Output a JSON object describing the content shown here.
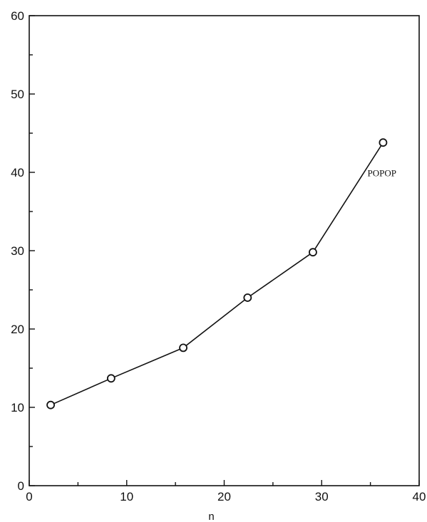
{
  "chart_data": {
    "type": "line",
    "title": "",
    "xlabel": "n",
    "ylabel": "",
    "xlim": [
      0,
      40
    ],
    "ylim": [
      0,
      60
    ],
    "x_ticks": [
      0,
      10,
      20,
      30,
      40
    ],
    "y_ticks": [
      0,
      10,
      20,
      30,
      40,
      50,
      60
    ],
    "x_tick_labels": [
      "0",
      "10",
      "20",
      "30",
      "40"
    ],
    "y_tick_labels": [
      "0",
      "10",
      "20",
      "30",
      "40",
      "50",
      "60"
    ],
    "grid": false,
    "series": [
      {
        "x": [
          2.2,
          8.4,
          15.8,
          22.4,
          29.1,
          36.3
        ],
        "y": [
          10.3,
          13.7,
          17.6,
          24.0,
          29.8,
          43.8
        ],
        "marker": "open-circle",
        "color": "#111111"
      }
    ],
    "annotations": [
      {
        "text": "POPOP",
        "x": 34.7,
        "y": 39.5
      }
    ]
  }
}
